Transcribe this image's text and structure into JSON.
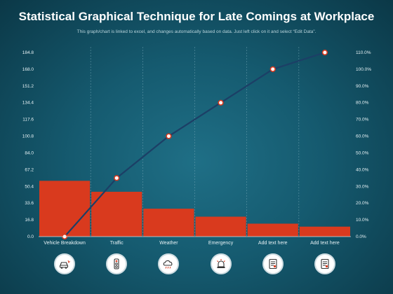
{
  "title": "Statistical Graphical Technique for Late Comings at Workplace",
  "subtitle": "This graph/chart is linked to excel, and changes automatically based on data. Just left click on it and select “Edit Data”.",
  "colors": {
    "bar": "#d93a1e",
    "line": "#1c3f66",
    "marker_fill": "#ffffff",
    "marker_stroke": "#d93a1e",
    "icon_stroke": "#333333",
    "icon_accent": "#d93a1e"
  },
  "chart_data": {
    "type": "bar",
    "categories": [
      "Vehicle Breakdown",
      "Traffic",
      "Weather",
      "Emergency",
      "Add text here",
      "Add text here"
    ],
    "series": [
      {
        "type": "bar",
        "axis": "left",
        "values": [
          56,
          45,
          28,
          20,
          13,
          10
        ]
      },
      {
        "type": "line",
        "axis": "right",
        "values": [
          0,
          35,
          60,
          80,
          100,
          110
        ]
      }
    ],
    "y_left": {
      "ylim": [
        0,
        184.8
      ],
      "ticks": [
        "0.0",
        "16.8",
        "33.6",
        "50.4",
        "67.2",
        "84.0",
        "100.8",
        "117.6",
        "134.4",
        "151.2",
        "168.0",
        "184.8"
      ]
    },
    "y_right": {
      "ylim": [
        0,
        110
      ],
      "ticks": [
        "0.0%",
        "10.0%",
        "20.0%",
        "30.0%",
        "40.0%",
        "50.0%",
        "60.0%",
        "70.0%",
        "80.0%",
        "90.0%",
        "100.0%",
        "110.0%"
      ]
    },
    "grid": "vertical-dashed"
  },
  "icons": [
    "car-icon",
    "traffic-light-icon",
    "weather-cloud-icon",
    "emergency-siren-icon",
    "document-icon",
    "document-icon"
  ]
}
